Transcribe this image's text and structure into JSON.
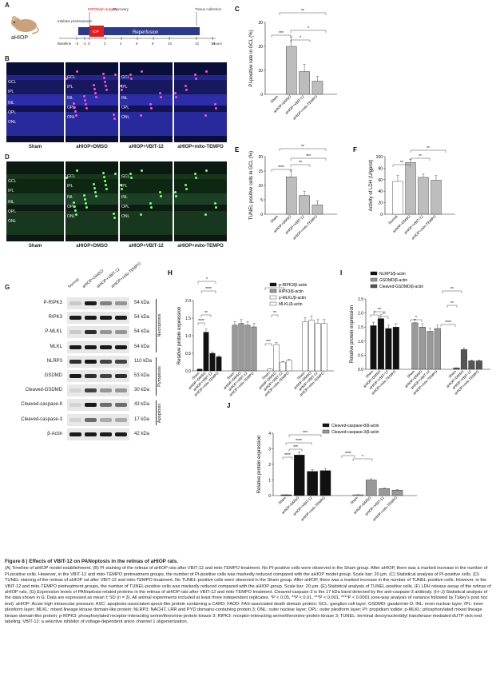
{
  "panelA": {
    "letter": "A",
    "group": "aHIOP",
    "labels": [
      "IOP/Sham surgery",
      "Recovery",
      "Tissue collection",
      "Inhibitor pretreatment",
      "IOP",
      "Reperfusion",
      "Baseline",
      "Hours"
    ],
    "ticks": [
      "-3",
      "-1",
      "0",
      "2",
      "4",
      "6",
      "8",
      "10",
      "12",
      "14"
    ]
  },
  "panelB": {
    "letter": "B",
    "groups": [
      "Sham",
      "aHIOP+DMSO",
      "aHIOP+VBIT-12",
      "aHIOP+mito-TEMPO"
    ],
    "layers": [
      "GCL",
      "IPL",
      "INL",
      "OPL",
      "ONL"
    ]
  },
  "panelD": {
    "letter": "D",
    "groups": [
      "Sham",
      "aHIOP+DMSO",
      "aHIOP+VBIT-12",
      "aHIOP+mito-TEMPO"
    ],
    "layers": [
      "GCL",
      "IPL",
      "INL",
      "OPL",
      "ONL"
    ]
  },
  "panelC": {
    "letter": "C",
    "ylabel": "PI-positive rate in GCL (%)"
  },
  "panelE": {
    "letter": "E",
    "ylabel": "TUNEL positive cells in GCL (%)"
  },
  "panelF": {
    "letter": "F",
    "ylabel": "Activity of LDH (U/gprot)"
  },
  "panelG": {
    "letter": "G",
    "lanes": [
      "Normal",
      "aHIOP+DMSO",
      "aHIOP+VBIT-12",
      "aHIOP+mito-TEMPO"
    ],
    "rows": [
      {
        "name": "P-RIPK3",
        "kda": "54 kDa"
      },
      {
        "name": "RIPK3",
        "kda": "54 kDa"
      },
      {
        "name": "P-MLKL",
        "kda": "54 kDa"
      },
      {
        "name": "MLKL",
        "kda": "54 kDa"
      },
      {
        "name": "NLRP3",
        "kda": "110 kDa"
      },
      {
        "name": "GSDMD",
        "kda": "53 kDa"
      },
      {
        "name": "Cleaved-GSDMD",
        "kda": "30 kDa"
      },
      {
        "name": "Cleaved-caspase-8",
        "kda": "43 kDa"
      },
      {
        "name": "Cleaved-caspase-3",
        "kda": "17 kDa"
      },
      {
        "name": "β-Actin",
        "kda": "42 kDa"
      }
    ],
    "groups": [
      "Necroptosis",
      "Pyroptosis",
      "Apoptosis"
    ]
  },
  "panelH": {
    "letter": "H",
    "ylabel": "Relative protein expression"
  },
  "panelI": {
    "letter": "I",
    "ylabel": "Relative protein expression"
  },
  "panelJ": {
    "letter": "J",
    "ylabel": "Relative protein expression"
  },
  "chart_data": [
    {
      "type": "bar",
      "id": "C",
      "categories": [
        "Sham",
        "aHIOP+DMSO",
        "aHIOP+VBIT-12",
        "aHIOP+mito-TEMPO"
      ],
      "values": [
        0,
        20,
        9.5,
        5.5
      ],
      "errors": [
        0,
        4,
        3,
        2
      ],
      "ylabel": "PI-positive rate in GCL (%)",
      "ylim": [
        0,
        30
      ],
      "yticks": [
        0,
        10,
        20,
        30
      ],
      "sig": [
        "***",
        "*",
        "*",
        "**"
      ]
    },
    {
      "type": "bar",
      "id": "E",
      "categories": [
        "Sham",
        "aHIOP+DMSO",
        "aHIOP+VBIT-12",
        "aHIOP+mito-TEMPO"
      ],
      "values": [
        0,
        13,
        6.5,
        3.2
      ],
      "errors": [
        0,
        2.3,
        1.5,
        1.5
      ],
      "ylabel": "TUNEL positive cells in GCL (%)",
      "ylim": [
        0,
        20
      ],
      "yticks": [
        0,
        5,
        10,
        15,
        20
      ],
      "sig": [
        "****",
        "**",
        "***",
        "**"
      ]
    },
    {
      "type": "bar",
      "id": "F",
      "categories": [
        "Normal",
        "aHIOP+DMSO",
        "aHIOP+VBIT-12",
        "aHIOP+mito-TEMPO"
      ],
      "values": [
        57,
        90,
        64,
        59
      ],
      "errors": [
        10,
        5,
        6,
        8
      ],
      "ylabel": "Activity of LDH (U/gprot)",
      "ylim": [
        0,
        100
      ],
      "yticks": [
        0,
        20,
        40,
        60,
        80,
        100
      ],
      "sig": [
        "**",
        "**",
        "**"
      ]
    },
    {
      "type": "bar",
      "id": "H",
      "categories": [
        "Sham",
        "aHIOP+DMSO",
        "aHIOP+VBIT-12",
        "aHIOP+mito-TEMPO"
      ],
      "series": [
        {
          "name": "p-RIPK3/β-actin",
          "values": [
            0.05,
            1.1,
            0.5,
            0.4
          ]
        },
        {
          "name": "RIPK3/β-actin",
          "values": [
            1.3,
            1.35,
            1.3,
            1.25
          ]
        },
        {
          "name": "p-MLKL/β-actin",
          "values": [
            0.05,
            0.75,
            0.25,
            0.3
          ]
        },
        {
          "name": "MLKL/β-actin",
          "values": [
            1.4,
            1.45,
            1.35,
            1.35
          ]
        }
      ],
      "ylabel": "Relative protein expression",
      "ylim": [
        0,
        2.0
      ],
      "yticks": [
        0.0,
        0.5,
        1.0,
        1.5,
        2.0
      ],
      "sig": [
        "****",
        "**",
        "****",
        "*",
        "***",
        "**",
        "*"
      ]
    },
    {
      "type": "bar",
      "id": "I",
      "categories": [
        "Sham",
        "aHIOP+DMSO",
        "aHIOP+VBIT-12",
        "aHIOP+mito-TEMPO"
      ],
      "series": [
        {
          "name": "NLRP3/β-actin",
          "values": [
            1.55,
            1.8,
            1.45,
            1.5
          ]
        },
        {
          "name": "GSDMD/β-actin",
          "values": [
            1.65,
            1.5,
            1.35,
            1.45
          ]
        },
        {
          "name": "Cleaved-GSDMD/β-actin",
          "values": [
            0.05,
            0.7,
            0.3,
            0.3
          ]
        }
      ],
      "ylabel": "Relative protein expression",
      "ylim": [
        0,
        2.5
      ],
      "yticks": [
        0.0,
        0.5,
        1.0,
        1.5,
        2.0,
        2.5
      ],
      "sig": [
        "*",
        "**",
        "*",
        "*",
        "****",
        "**",
        "**"
      ]
    },
    {
      "type": "bar",
      "id": "J",
      "categories": [
        "Sham",
        "aHIOP+DMSO",
        "aHIOP+VBIT-12",
        "aHIOP+mito-TEMPO"
      ],
      "series": [
        {
          "name": "Cleaved-caspase-8/β-actin",
          "values": [
            0.05,
            2.6,
            1.55,
            1.6
          ]
        },
        {
          "name": "Cleaved-caspase-3/β-actin",
          "values": [
            0.05,
            1.0,
            0.45,
            0.35
          ]
        }
      ],
      "ylabel": "Relative protein expression",
      "ylim": [
        0,
        4
      ],
      "yticks": [
        0,
        1,
        2,
        3,
        4
      ],
      "sig": [
        "****",
        "***",
        "****",
        "***",
        "****",
        "*"
      ]
    }
  ],
  "caption": {
    "title": "Figure 8 | Effects of VBIT-12 on PANoptosis in the retinas of aHIOP rats.",
    "body": "(A) Timeline of aHIOP model establishment. (B) PI staining of the retinas of aHIOP rats after VBIT-12 and mito-TEMPO treatment. No PI-positive cells were observed in the Sham group. After aHIOP, there was a marked increase in the number of PI-positive cells. However, in the VBIT-12 and mito-TEMPO pretreatment groups, the number of PI-positive cells was markedly reduced compared with the aHIOP model group. Scale bar: 20 μm. (C) Statistical analysis of PI-positive cells. (D) TUNEL staining of the retinas of aHIOP rat after VBIT-12 and mito-TEMPO treatment. No TUNEL-positive cells were observed in the Sham group. After aHIOP, there was a marked increase in the number of TUNEL-positive cells. However, in the VBIT-12 and mito-TEMPO pretreatment groups, the number of TUNEL-positive cells was markedly reduced compared with the aHIOP group. Scale bar: 20 μm. (E) Statistical analysis of TUNEL-positive cells. (F) LDH release assay of the retinas of aHIOP rats. (G) Expression levels of PANoptosis-related proteins in the retinas of aHIOP rats after VBIT-12 and mito-TEMPO treatment. Cleaved-caspase-3 is the 17 kDa band detected by the anti-caspase-3 antibody. (H–J) Statistical analysis of the data shown in G. Data are expressed as mean ± SD (n = 3). All animal experiments included at least three independent replicates. *P < 0.05, **P < 0.01, ***P < 0.001, ****P < 0.0001 (one-way analysis of variance followed by Tukey's post hoc test). aHIOP: Acute high intraocular pressure; ASC: apoptosis-associated speck-like protein containing a CARD; FADD: FAS-associated death domain protein; GCL: ganglion cell layer; GSDMD: gasdermin-D; INL: inner nuclear layer; IPL: inner plexiform layer; MLKL: mixed lineage kinase domain-like protein; NLRP3: NACHT, LRR and PYD domains-containing protein 3; ONL: outer nuclear layer; OPL: outer plexiform layer; PI: propidium iodide; p-MLKL: phosphorylated mixed lineage kinase domain-like protein; p-RIPK3: phosphorylated receptor-interacting serine/threonine-protein kinase 3; RIPK3: receptor-interacting serine/threonine-protein kinase 3; TUNEL: terminal deoxynucleotidyl transferase-mediated dUTP nick-end labeling; VBIT-12: a selective inhibitor of voltage-dependent anion channel 1 oligomerization."
  }
}
